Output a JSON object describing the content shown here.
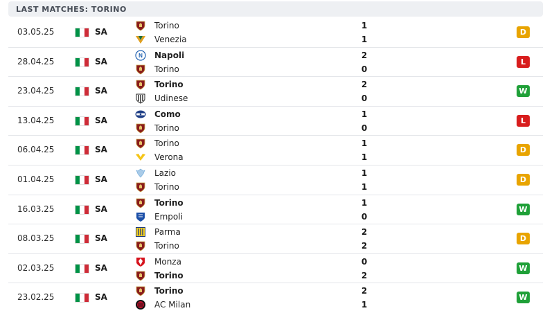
{
  "header": {
    "title": "LAST MATCHES: TORINO"
  },
  "colors": {
    "header_bg": "#eef0f3",
    "win": "#1fa038",
    "draw": "#e8a400",
    "loss": "#d81d1d",
    "italy_flag": [
      "#009246",
      "#ffffff",
      "#ce2b37"
    ]
  },
  "matches": [
    {
      "date": "03.05.25",
      "competition": "SA",
      "home": {
        "name": "Torino",
        "bold": false,
        "logo": "torino-crest-icon"
      },
      "away": {
        "name": "Venezia",
        "bold": false,
        "logo": "venezia-crest-icon"
      },
      "score_home": "1",
      "score_away": "1",
      "result": "D"
    },
    {
      "date": "28.04.25",
      "competition": "SA",
      "home": {
        "name": "Napoli",
        "bold": true,
        "logo": "napoli-crest-icon"
      },
      "away": {
        "name": "Torino",
        "bold": false,
        "logo": "torino-crest-icon"
      },
      "score_home": "2",
      "score_away": "0",
      "result": "L"
    },
    {
      "date": "23.04.25",
      "competition": "SA",
      "home": {
        "name": "Torino",
        "bold": true,
        "logo": "torino-crest-icon"
      },
      "away": {
        "name": "Udinese",
        "bold": false,
        "logo": "udinese-crest-icon"
      },
      "score_home": "2",
      "score_away": "0",
      "result": "W"
    },
    {
      "date": "13.04.25",
      "competition": "SA",
      "home": {
        "name": "Como",
        "bold": true,
        "logo": "como-crest-icon"
      },
      "away": {
        "name": "Torino",
        "bold": false,
        "logo": "torino-crest-icon"
      },
      "score_home": "1",
      "score_away": "0",
      "result": "L"
    },
    {
      "date": "06.04.25",
      "competition": "SA",
      "home": {
        "name": "Torino",
        "bold": false,
        "logo": "torino-crest-icon"
      },
      "away": {
        "name": "Verona",
        "bold": false,
        "logo": "verona-crest-icon"
      },
      "score_home": "1",
      "score_away": "1",
      "result": "D"
    },
    {
      "date": "01.04.25",
      "competition": "SA",
      "home": {
        "name": "Lazio",
        "bold": false,
        "logo": "lazio-crest-icon"
      },
      "away": {
        "name": "Torino",
        "bold": false,
        "logo": "torino-crest-icon"
      },
      "score_home": "1",
      "score_away": "1",
      "result": "D"
    },
    {
      "date": "16.03.25",
      "competition": "SA",
      "home": {
        "name": "Torino",
        "bold": true,
        "logo": "torino-crest-icon"
      },
      "away": {
        "name": "Empoli",
        "bold": false,
        "logo": "empoli-crest-icon"
      },
      "score_home": "1",
      "score_away": "0",
      "result": "W"
    },
    {
      "date": "08.03.25",
      "competition": "SA",
      "home": {
        "name": "Parma",
        "bold": false,
        "logo": "parma-crest-icon"
      },
      "away": {
        "name": "Torino",
        "bold": false,
        "logo": "torino-crest-icon"
      },
      "score_home": "2",
      "score_away": "2",
      "result": "D"
    },
    {
      "date": "02.03.25",
      "competition": "SA",
      "home": {
        "name": "Monza",
        "bold": false,
        "logo": "monza-crest-icon"
      },
      "away": {
        "name": "Torino",
        "bold": true,
        "logo": "torino-crest-icon"
      },
      "score_home": "0",
      "score_away": "2",
      "result": "W"
    },
    {
      "date": "23.02.25",
      "competition": "SA",
      "home": {
        "name": "Torino",
        "bold": true,
        "logo": "torino-crest-icon"
      },
      "away": {
        "name": "AC Milan",
        "bold": false,
        "logo": "ac-milan-crest-icon"
      },
      "score_home": "2",
      "score_away": "1",
      "result": "W"
    }
  ]
}
